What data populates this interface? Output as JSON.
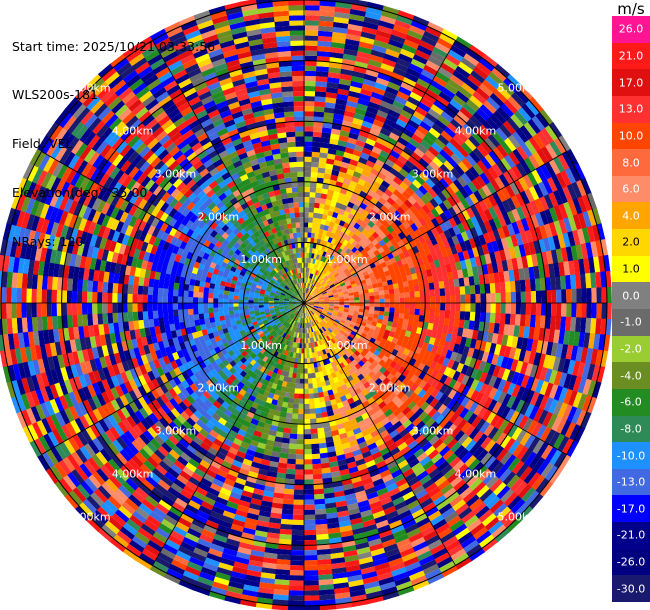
{
  "header": {
    "start_time": "Start time: 2025/10/21 03:33:56",
    "instrument": "WLS200s-181",
    "field": "Field: VEL",
    "elevation": "Elevation(deg): 35.00",
    "nrays": "NRays: 120"
  },
  "colorbar": {
    "unit": "m/s",
    "labels": [
      "26.0",
      "21.0",
      "17.0",
      "13.0",
      "10.0",
      "8.0",
      "6.0",
      "4.0",
      "2.0",
      "1.0",
      "0.0",
      "-1.0",
      "-2.0",
      "-4.0",
      "-6.0",
      "-8.0",
      "-10.0",
      "-13.0",
      "-17.0",
      "-21.0",
      "-26.0",
      "-30.0"
    ],
    "colors": [
      "#ff1493",
      "#ff1a1a",
      "#e01010",
      "#ff3030",
      "#ff4500",
      "#ff6a3d",
      "#ff8c69",
      "#ffa500",
      "#ffd700",
      "#ffff00",
      "#808080",
      "#6b6b6b",
      "#9acd32",
      "#6b8e23",
      "#228b22",
      "#2e8b57",
      "#1e90ff",
      "#4169e1",
      "#0000ff",
      "#00008b",
      "#000080",
      "#191970"
    ]
  },
  "chart_data": {
    "type": "heatmap",
    "projection": "polar PPI",
    "field": "VEL",
    "units": "m/s",
    "vmin": -30.0,
    "vmax": 26.0,
    "nrays": 120,
    "range_rings_km": [
      1.0,
      2.0,
      3.0,
      4.0,
      5.0
    ],
    "range_ring_labels": [
      "1.00km",
      "2.00km",
      "3.00km",
      "4.00km",
      "5.00km"
    ],
    "max_range_km": 5.0,
    "pattern": {
      "inner_radius_km": 2.5,
      "positive_sector_center_deg": 90,
      "negative_sector_center_deg": 270,
      "outer_region": "noise"
    }
  }
}
